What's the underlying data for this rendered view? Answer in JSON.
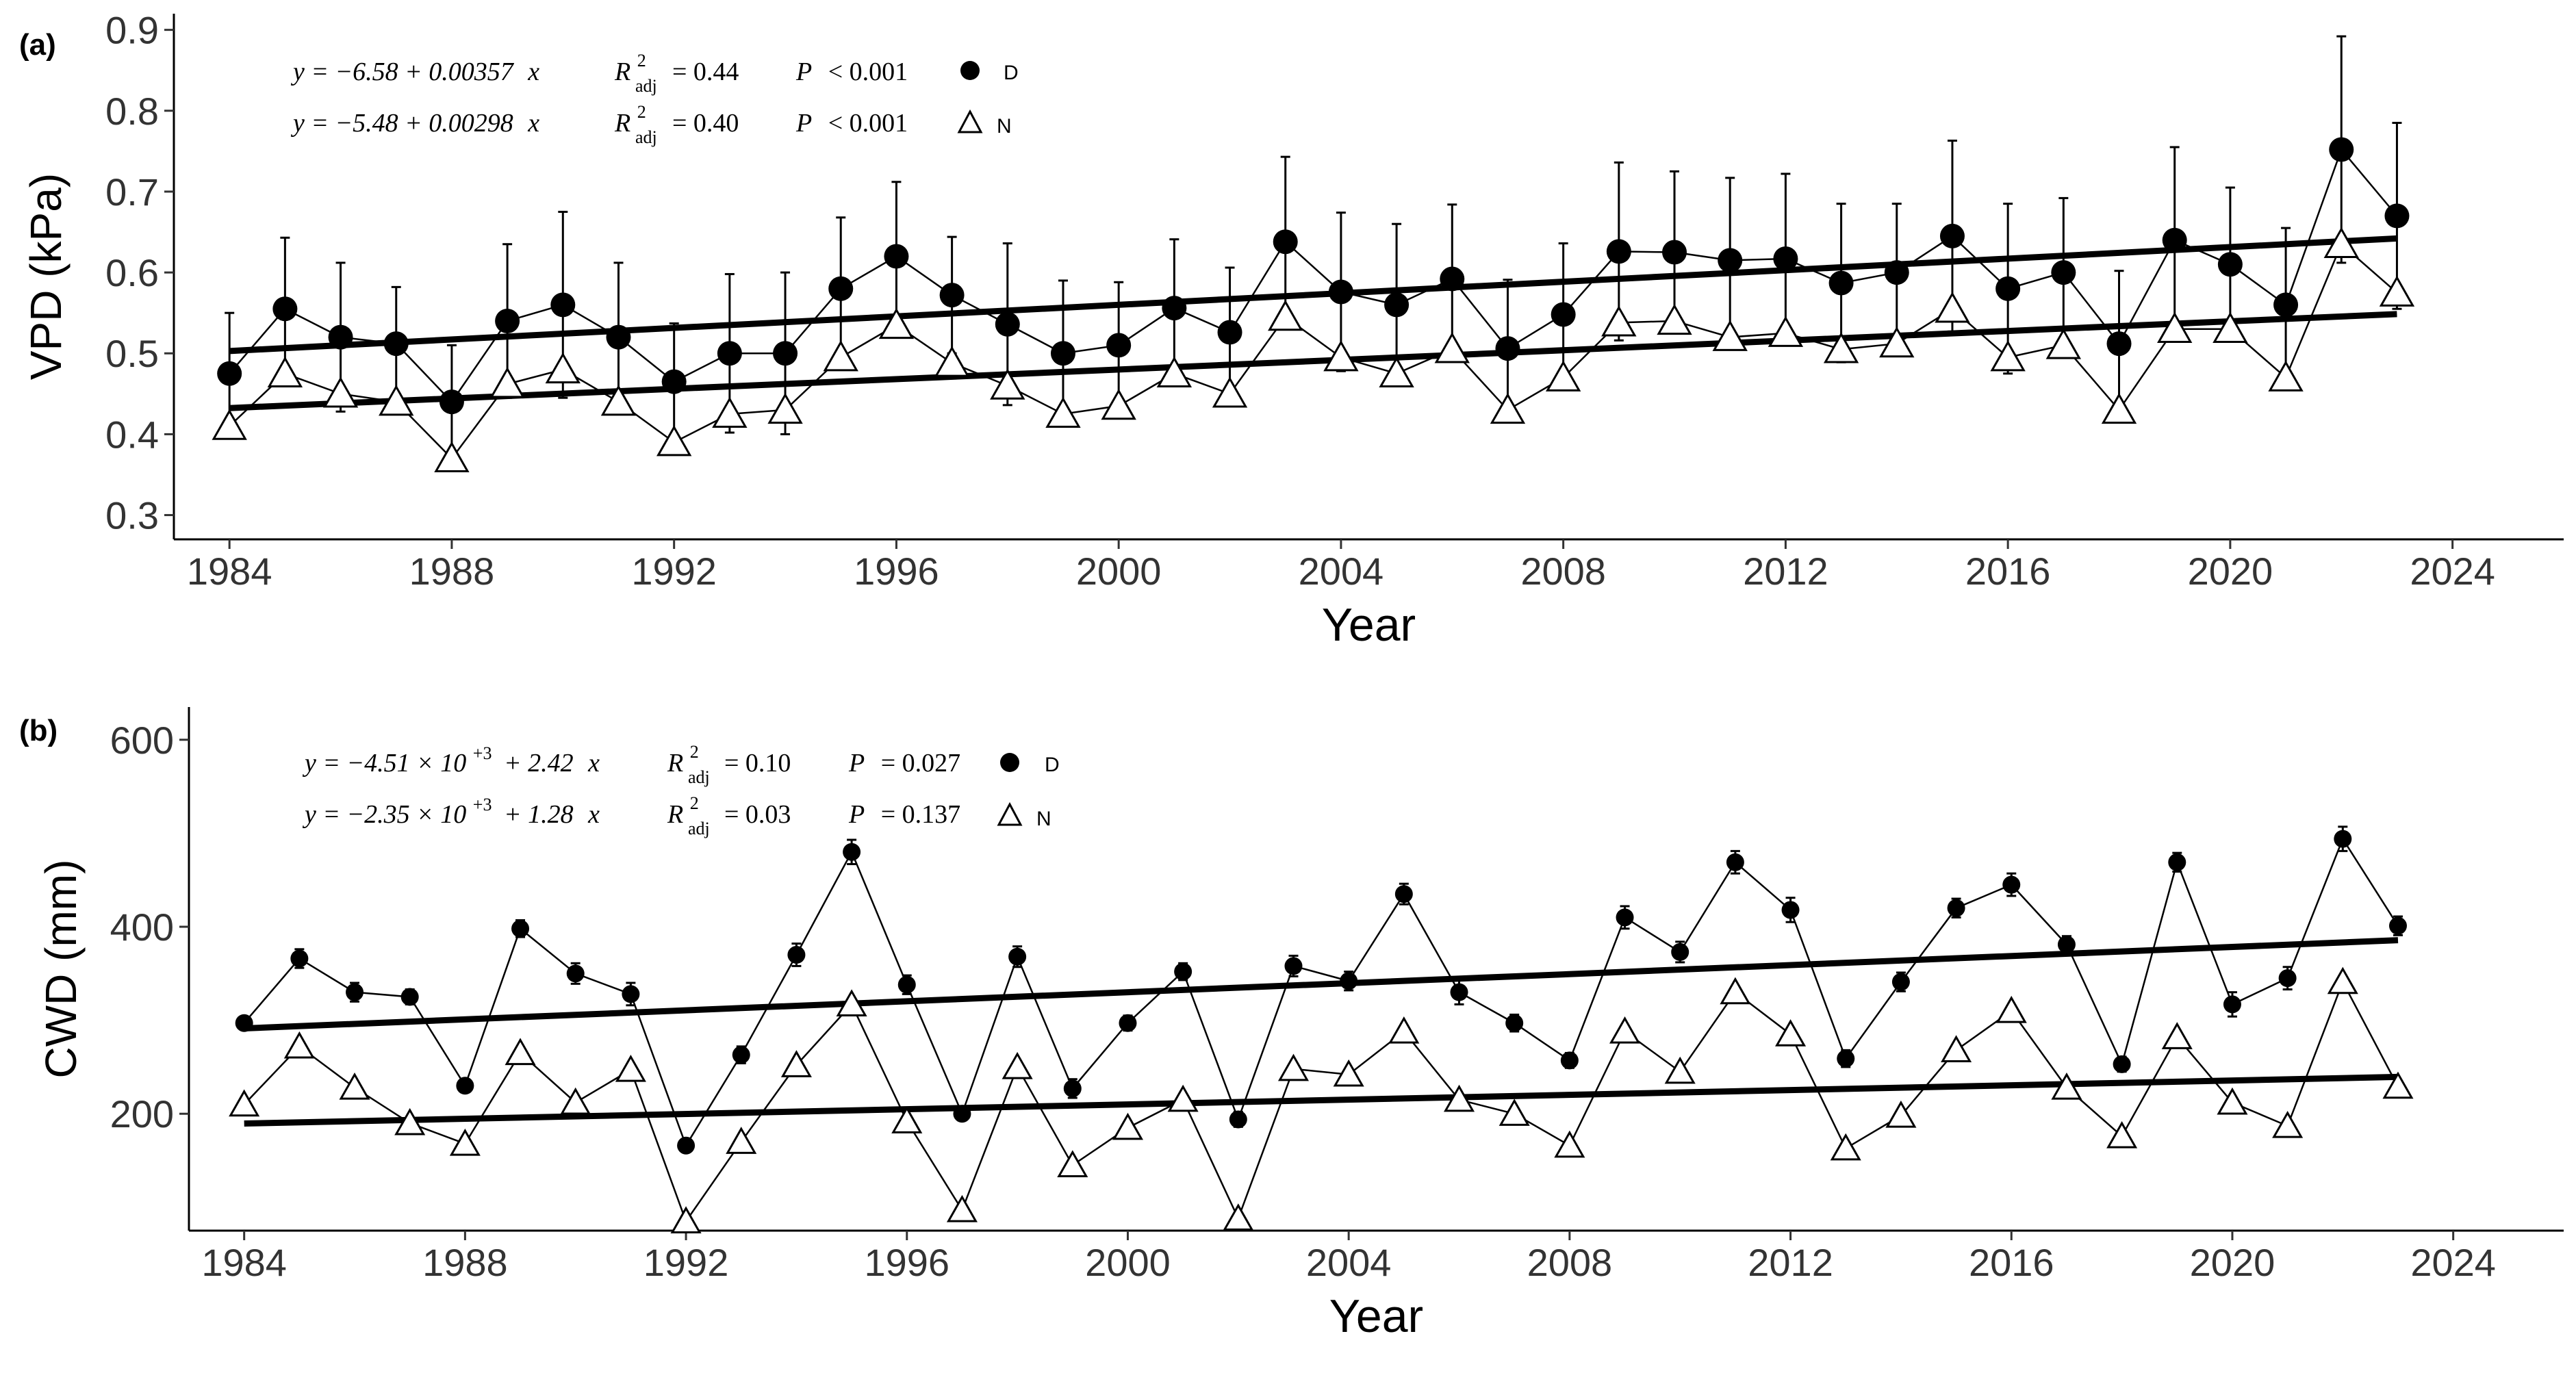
{
  "chart_data": [
    {
      "type": "line",
      "panel_label": "(a)",
      "xlabel": "Year",
      "ylabel": "VPD (kPa)",
      "xlim": [
        1983,
        2026
      ],
      "ylim": [
        0.27,
        0.92
      ],
      "x_ticks": [
        1984,
        1988,
        1992,
        1996,
        2000,
        2004,
        2008,
        2012,
        2016,
        2020,
        2024
      ],
      "y_ticks": [
        0.3,
        0.4,
        0.5,
        0.6,
        0.7,
        0.8,
        0.9
      ],
      "y_tick_labels": [
        "0.3",
        "0.4",
        "0.5",
        "0.6",
        "0.7",
        "0.8",
        "0.9"
      ],
      "x": [
        1984,
        1985,
        1986,
        1987,
        1988,
        1989,
        1990,
        1991,
        1992,
        1993,
        1994,
        1995,
        1996,
        1997,
        1998,
        1999,
        2000,
        2001,
        2002,
        2003,
        2004,
        2005,
        2006,
        2007,
        2008,
        2009,
        2010,
        2011,
        2012,
        2013,
        2014,
        2015,
        2016,
        2017,
        2018,
        2019,
        2020,
        2021,
        2022,
        2023
      ],
      "series": [
        {
          "name": "D",
          "marker": "filled-circle",
          "values": [
            0.475,
            0.555,
            0.52,
            0.512,
            0.44,
            0.54,
            0.56,
            0.52,
            0.465,
            0.5,
            0.5,
            0.58,
            0.62,
            0.572,
            0.536,
            0.5,
            0.51,
            0.556,
            0.526,
            0.638,
            0.576,
            0.56,
            0.592,
            0.506,
            0.548,
            0.626,
            0.625,
            0.615,
            0.617,
            0.587,
            0.6,
            0.645,
            0.58,
            0.6,
            0.512,
            0.64,
            0.61,
            0.56,
            0.752,
            0.67
          ],
          "errors": [
            0.075,
            0.088,
            0.092,
            0.07,
            0.07,
            0.095,
            0.115,
            0.092,
            0.072,
            0.098,
            0.1,
            0.088,
            0.092,
            0.072,
            0.1,
            0.09,
            0.078,
            0.085,
            0.08,
            0.105,
            0.098,
            0.1,
            0.092,
            0.085,
            0.088,
            0.11,
            0.1,
            0.102,
            0.105,
            0.098,
            0.085,
            0.118,
            0.105,
            0.092,
            0.09,
            0.115,
            0.095,
            0.095,
            0.14,
            0.115
          ],
          "fit": {
            "intercept": -6.58,
            "slope": 0.00357,
            "x_range": [
              1984,
              2023
            ]
          },
          "annotation": {
            "eq_left": "y = −6.58 + 0.00357",
            "eq_x": "x",
            "r_label": "R",
            "r_sup": "2",
            "r_sub": "adj",
            "r_value": "= 0.44",
            "p_label": "P",
            "p_value": "< 0.001",
            "legend_label": "D"
          }
        },
        {
          "name": "N",
          "marker": "open-triangle",
          "values": [
            0.41,
            0.475,
            0.45,
            0.44,
            0.37,
            0.462,
            0.48,
            0.44,
            0.39,
            0.425,
            0.43,
            0.495,
            0.535,
            0.488,
            0.46,
            0.425,
            0.435,
            0.475,
            0.45,
            0.545,
            0.495,
            0.475,
            0.505,
            0.43,
            0.47,
            0.538,
            0.54,
            0.52,
            0.525,
            0.505,
            0.512,
            0.555,
            0.495,
            0.51,
            0.43,
            0.53,
            0.53,
            0.47,
            0.635,
            0.575
          ],
          "fit": {
            "intercept": -5.48,
            "slope": 0.00298,
            "x_range": [
              1984,
              2023
            ]
          },
          "annotation": {
            "eq_left": "y = −5.48 + 0.00298",
            "eq_x": "x",
            "r_label": "R",
            "r_sup": "2",
            "r_sub": "adj",
            "r_value": "= 0.40",
            "p_label": "P",
            "p_value": "< 0.001",
            "legend_label": "N"
          }
        }
      ]
    },
    {
      "type": "line",
      "panel_label": "(b)",
      "xlabel": "Year",
      "ylabel": "CWD (mm)",
      "xlim": [
        1983,
        2026
      ],
      "ylim": [
        75,
        635
      ],
      "x_ticks": [
        1984,
        1988,
        1992,
        1996,
        2000,
        2004,
        2008,
        2012,
        2016,
        2020,
        2024
      ],
      "y_ticks": [
        200,
        400,
        600
      ],
      "y_tick_labels": [
        "200",
        "400",
        "600"
      ],
      "x": [
        1984,
        1985,
        1986,
        1987,
        1988,
        1989,
        1990,
        1991,
        1992,
        1993,
        1994,
        1995,
        1996,
        1997,
        1998,
        1999,
        2000,
        2001,
        2002,
        2003,
        2004,
        2005,
        2006,
        2007,
        2008,
        2009,
        2010,
        2011,
        2012,
        2013,
        2014,
        2015,
        2016,
        2017,
        2018,
        2019,
        2020,
        2021,
        2022,
        2023
      ],
      "series": [
        {
          "name": "D",
          "marker": "filled-circle",
          "values": [
            297,
            366,
            330,
            325,
            230,
            398,
            350,
            328,
            166,
            263,
            370,
            480,
            338,
            200,
            368,
            227,
            297,
            352,
            194,
            358,
            342,
            435,
            330,
            297,
            257,
            410,
            373,
            469,
            418,
            259,
            341,
            420,
            445,
            381,
            253,
            469,
            317,
            345,
            494,
            401
          ],
          "errors": [
            6,
            10,
            10,
            8,
            7,
            9,
            11,
            12,
            6,
            9,
            12,
            13,
            10,
            7,
            11,
            10,
            8,
            9,
            8,
            11,
            10,
            11,
            13,
            9,
            8,
            12,
            11,
            12,
            13,
            9,
            10,
            10,
            12,
            9,
            8,
            10,
            13,
            12,
            13,
            10
          ],
          "fit": {
            "intercept": -4510,
            "slope": 2.42,
            "x_range": [
              1984,
              2023
            ]
          },
          "annotation": {
            "eq_left": "y = −4.51 × 10",
            "eq_sup": "+3",
            "eq_mid": "+ 2.42",
            "eq_x": "x",
            "r_label": "R",
            "r_sup": "2",
            "r_sub": "adj",
            "r_value": "= 0.10",
            "p_label": "P",
            "p_value": "= 0.027",
            "legend_label": "D"
          }
        },
        {
          "name": "N",
          "marker": "open-triangle",
          "values": [
            210,
            272,
            228,
            190,
            168,
            265,
            212,
            247,
            85,
            170,
            252,
            317,
            192,
            97,
            250,
            145,
            185,
            215,
            88,
            248,
            242,
            288,
            215,
            200,
            166,
            288,
            245,
            330,
            285,
            163,
            198,
            268,
            310,
            228,
            176,
            282,
            212,
            187,
            341,
            229
          ],
          "fit": {
            "intercept": -2350,
            "slope": 1.28,
            "x_range": [
              1984,
              2023
            ]
          },
          "annotation": {
            "eq_left": "y = −2.35 × 10",
            "eq_sup": "+3",
            "eq_mid": "+ 1.28",
            "eq_x": "x",
            "r_label": "R",
            "r_sup": "2",
            "r_sub": "adj",
            "r_value": "= 0.03",
            "p_label": "P",
            "p_value": "= 0.137",
            "legend_label": "N"
          }
        }
      ]
    }
  ]
}
